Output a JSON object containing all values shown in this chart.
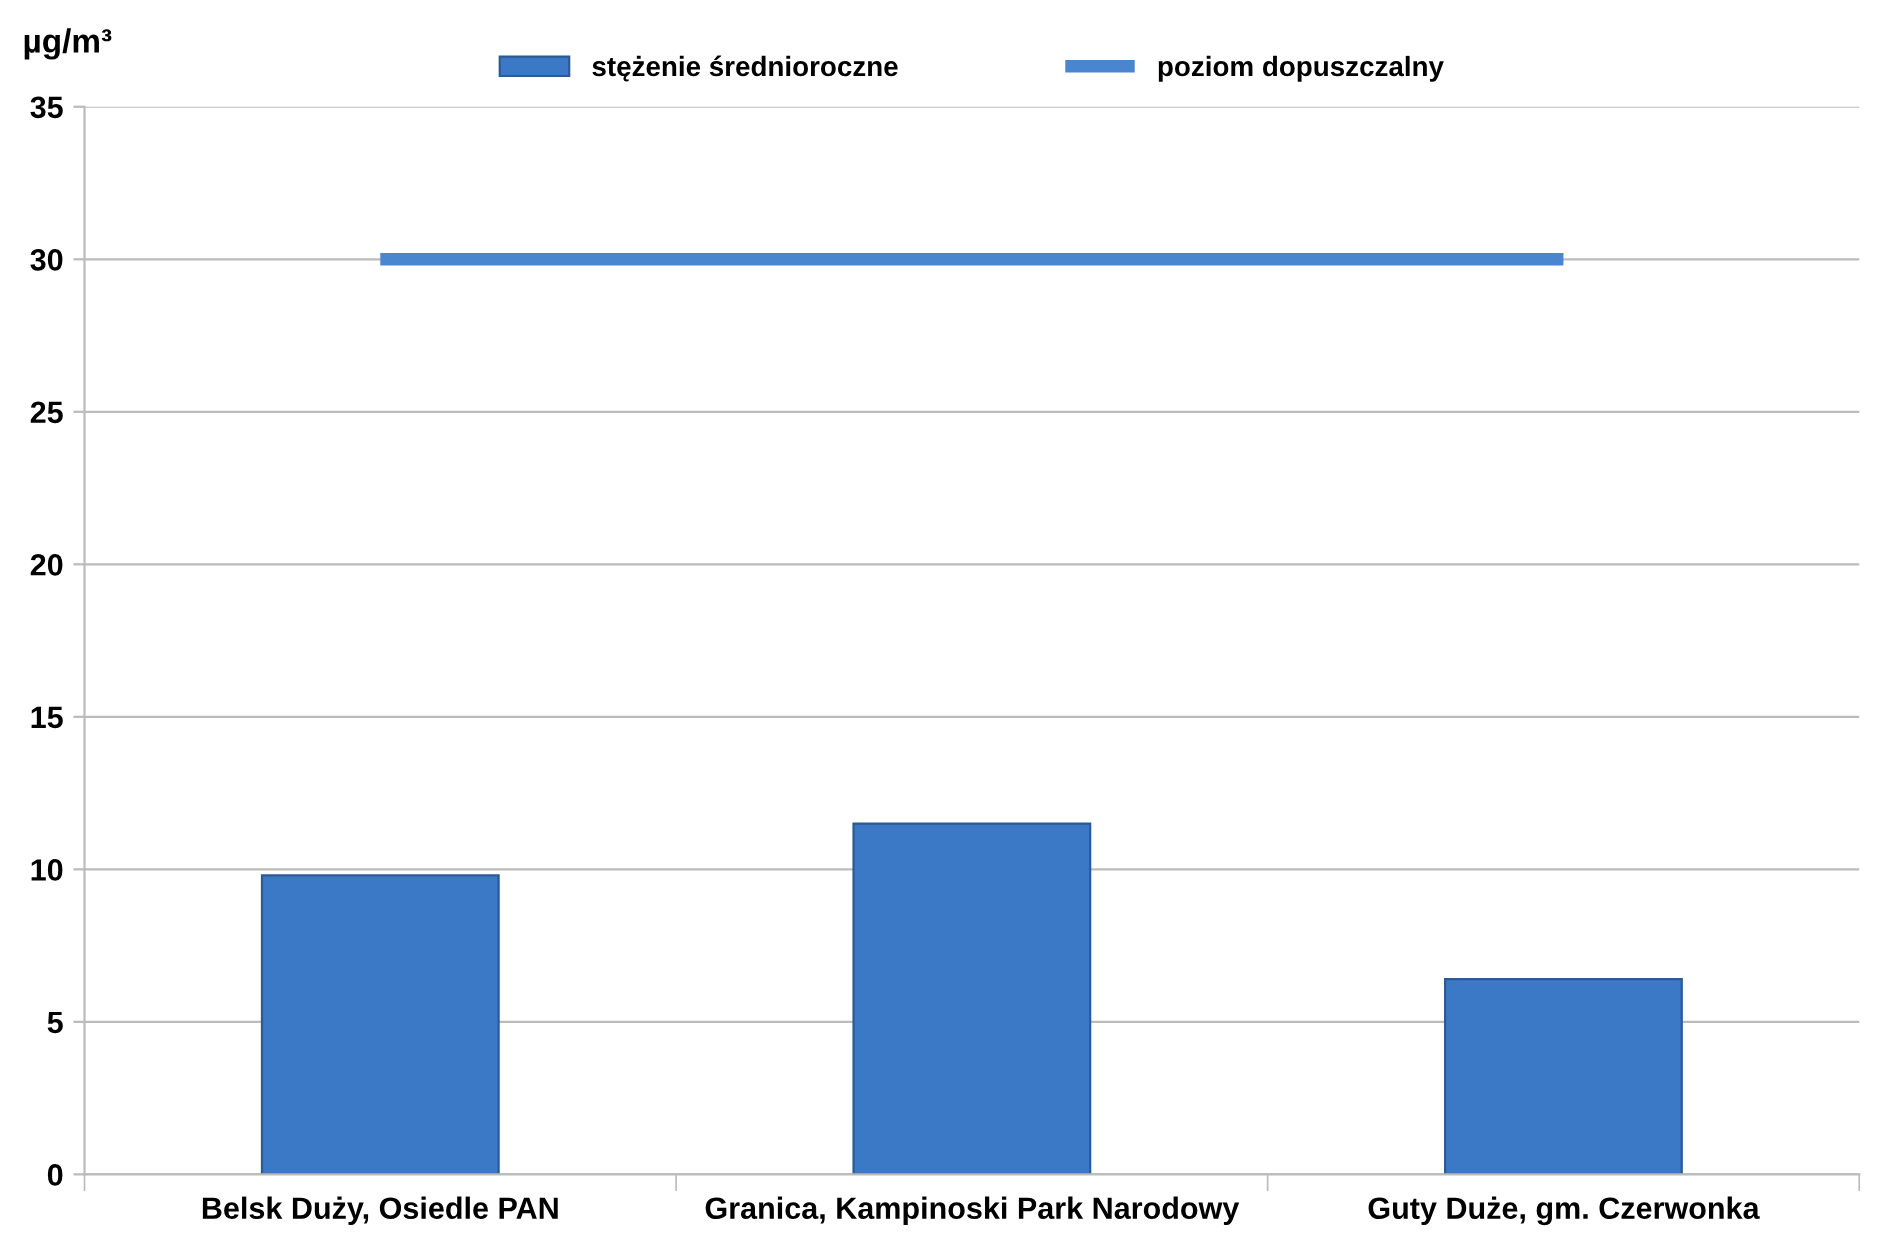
{
  "chart_data": {
    "type": "bar",
    "ylabel": "µg/m³",
    "categories": [
      "Belsk Duży, Osiedle PAN",
      "Granica, Kampinoski Park Narodowy",
      "Guty Duże, gm. Czerwonka"
    ],
    "series": [
      {
        "name": "stężenie średnioroczne",
        "color": "#3b78c6",
        "values": [
          9.8,
          11.5,
          6.4
        ]
      },
      {
        "name": "poziom dopuszczalny",
        "type": "line",
        "color": "#4a86d0",
        "values": [
          30,
          30,
          30
        ]
      }
    ],
    "ylim": [
      0,
      35
    ],
    "yticks": [
      0,
      5,
      10,
      15,
      20,
      25,
      30,
      35
    ],
    "grid": "y",
    "legend": "top",
    "marker": "none"
  }
}
